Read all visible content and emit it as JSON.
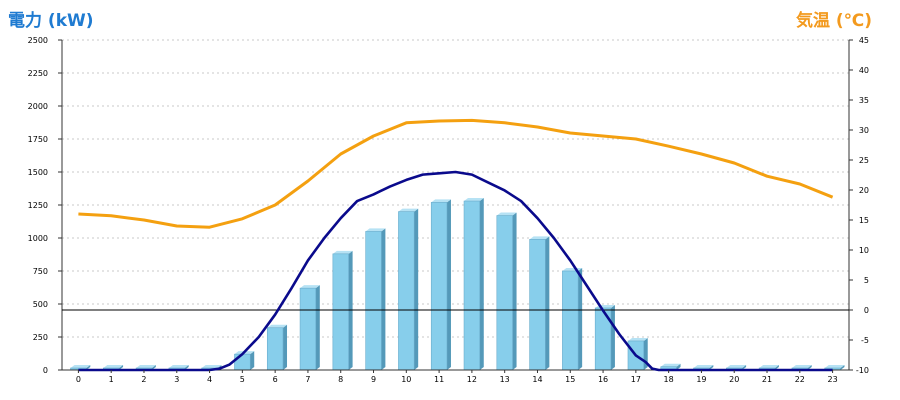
{
  "chart_data": {
    "type": "bar",
    "left_axis_title": "電力 (kW)",
    "right_axis_title": "気温 (℃)",
    "categories": [
      "0",
      "1",
      "2",
      "3",
      "4",
      "5",
      "6",
      "7",
      "8",
      "9",
      "10",
      "11",
      "12",
      "13",
      "14",
      "15",
      "16",
      "17",
      "18",
      "19",
      "20",
      "21",
      "22",
      "23"
    ],
    "y_left": {
      "min": 0,
      "max": 2500,
      "step": 250,
      "ticks": [
        "0",
        "250",
        "500",
        "750",
        "1000",
        "1250",
        "1500",
        "1750",
        "2000",
        "2250",
        "2500"
      ]
    },
    "y_right": {
      "min": -10,
      "max": 45,
      "step": 5,
      "ticks": [
        "-10",
        "-5",
        "0",
        "5",
        "10",
        "15",
        "20",
        "25",
        "30",
        "35",
        "40",
        "45"
      ]
    },
    "grid": true,
    "bars": {
      "color": "#87ceeb",
      "values": [
        15,
        15,
        15,
        15,
        15,
        120,
        320,
        620,
        880,
        1050,
        1200,
        1270,
        1280,
        1170,
        990,
        750,
        470,
        220,
        25,
        15,
        15,
        15,
        15,
        15
      ]
    },
    "power_line": {
      "color": "#0a0a8c",
      "points": [
        [
          0,
          0
        ],
        [
          1,
          0
        ],
        [
          2,
          0
        ],
        [
          3,
          0
        ],
        [
          4,
          0
        ],
        [
          4.3,
          10
        ],
        [
          4.6,
          40
        ],
        [
          5,
          120
        ],
        [
          5.5,
          250
        ],
        [
          6,
          420
        ],
        [
          6.5,
          620
        ],
        [
          7,
          830
        ],
        [
          7.5,
          1000
        ],
        [
          8,
          1150
        ],
        [
          8.5,
          1280
        ],
        [
          9,
          1330
        ],
        [
          9.5,
          1390
        ],
        [
          10,
          1440
        ],
        [
          10.5,
          1480
        ],
        [
          11,
          1490
        ],
        [
          11.5,
          1500
        ],
        [
          12,
          1480
        ],
        [
          12.5,
          1420
        ],
        [
          13,
          1360
        ],
        [
          13.5,
          1280
        ],
        [
          14,
          1150
        ],
        [
          14.5,
          1000
        ],
        [
          15,
          830
        ],
        [
          15.5,
          640
        ],
        [
          16,
          450
        ],
        [
          16.5,
          270
        ],
        [
          17,
          110
        ],
        [
          17.3,
          60
        ],
        [
          17.5,
          10
        ],
        [
          17.7,
          0
        ],
        [
          18,
          0
        ],
        [
          19,
          0
        ],
        [
          20,
          0
        ],
        [
          21,
          0
        ],
        [
          22,
          0
        ],
        [
          23,
          0
        ]
      ]
    },
    "temp_line": {
      "color": "#f4a010",
      "x": [
        0,
        1,
        2,
        3,
        4,
        5,
        6,
        7,
        8,
        9,
        10,
        11,
        12,
        13,
        14,
        15,
        16,
        17,
        18,
        19,
        20,
        21,
        22,
        23
      ],
      "values": [
        16,
        15.7,
        15,
        14,
        13.8,
        15.2,
        17.5,
        21.5,
        26,
        29,
        31.2,
        31.5,
        31.6,
        31.2,
        30.5,
        29.5,
        29,
        28.5,
        27.3,
        26,
        24.5,
        22.3,
        21,
        18.8
      ]
    }
  }
}
